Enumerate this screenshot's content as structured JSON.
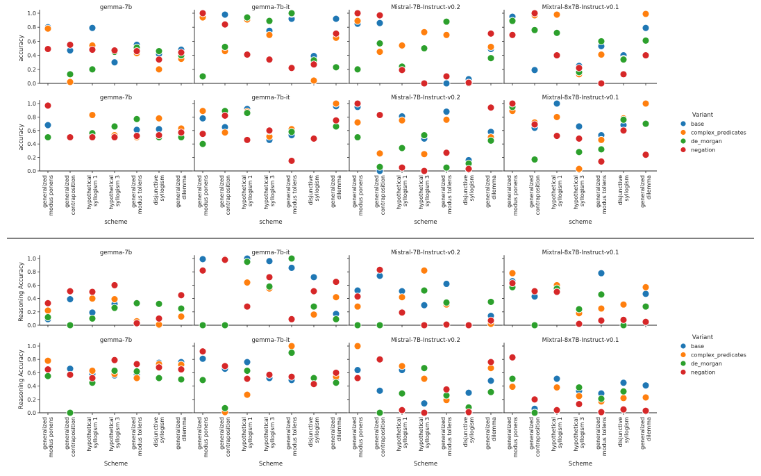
{
  "chart_data": [
    {
      "type": "scatter",
      "ylabel": "accuracy",
      "xlabel": "scheme",
      "ylim": [
        0,
        1.0
      ],
      "yticks": [
        "0.0",
        "0.2",
        "0.4",
        "0.6",
        "0.8",
        "1.0"
      ],
      "grid": false,
      "legend_title": "Variant",
      "legend_position": "right",
      "categories": [
        "generalized\nmodus ponens",
        "generalized\ncontraposition",
        "hypothetical\nsyllogism 1",
        "hypothetical\nsyllogism 3",
        "generalized\nmodus tollens",
        "disjunctive\nsyllogism",
        "generalized\ndilemma"
      ],
      "series_names": [
        "base",
        "complex_predicates",
        "de_morgan",
        "negation"
      ],
      "colors": [
        "#1f77b4",
        "#ff7f0e",
        "#2ca02c",
        "#d62728"
      ],
      "rows": [
        [
          {
            "title": "gemma-7b",
            "values": [
              [
                0.8,
                0.47,
                0.79,
                0.3,
                0.55,
                0.42,
                0.48
              ],
              [
                0.78,
                0.02,
                0.54,
                0.46,
                0.43,
                0.2,
                0.35
              ],
              [
                0.49,
                0.13,
                0.2,
                0.45,
                0.51,
                0.46,
                0.4
              ],
              [
                0.49,
                0.55,
                0.48,
                0.47,
                0.46,
                0.34,
                0.44
              ]
            ]
          },
          {
            "title": "gemma-7b-it",
            "values": [
              [
                1.0,
                0.98,
                0.93,
                0.75,
                0.92,
                0.39,
                0.92
              ],
              [
                0.94,
                0.46,
                0.91,
                0.69,
                0.99,
                0.04,
                0.65
              ],
              [
                0.1,
                0.52,
                0.94,
                0.89,
                1.0,
                0.33,
                0.23
              ],
              [
                1.0,
                0.84,
                0.41,
                0.34,
                0.22,
                0.27,
                0.71
              ]
            ]
          },
          {
            "title": "Mistral-7B-Instruct-v0.2",
            "values": [
              [
                0.85,
                0.86,
                0.53,
                0.0,
                0.0,
                0.06,
                0.49
              ],
              [
                0.89,
                0.45,
                0.54,
                0.73,
                0.69,
                0.01,
                0.52
              ],
              [
                0.2,
                0.57,
                0.24,
                0.5,
                0.88,
                0.0,
                0.36
              ],
              [
                1.0,
                0.97,
                0.19,
                0.0,
                0.1,
                0.01,
                0.71
              ]
            ]
          },
          {
            "title": "Mixtral-8x7B-Instruct-v0.1",
            "values": [
              [
                0.95,
                0.19,
                0.98,
                0.25,
                0.53,
                0.4,
                0.79
              ],
              [
                0.89,
                0.97,
                0.98,
                0.13,
                0.41,
                0.35,
                0.99
              ],
              [
                0.89,
                0.76,
                0.72,
                0.16,
                0.6,
                0.34,
                0.61
              ],
              [
                0.69,
                1.0,
                0.4,
                0.22,
                0.0,
                0.13,
                0.4
              ]
            ]
          }
        ],
        [
          {
            "title": "gemma-7b",
            "values": [
              [
                0.68,
                0.5,
                0.5,
                0.5,
                0.61,
                0.62,
                0.57
              ],
              [
                0.5,
                0.5,
                0.83,
                0.53,
                0.5,
                0.78,
                0.63
              ],
              [
                0.5,
                0.5,
                0.56,
                0.66,
                0.77,
                0.5,
                0.5
              ],
              [
                0.97,
                0.5,
                0.5,
                0.5,
                0.52,
                0.53,
                0.57
              ]
            ]
          },
          {
            "title": "gemma-7b-it",
            "values": [
              [
                0.78,
                0.65,
                0.92,
                0.46,
                0.53,
                0.48,
                0.96
              ],
              [
                0.89,
                0.57,
                0.88,
                0.51,
                0.62,
                0.48,
                1.0
              ],
              [
                0.4,
                0.89,
                0.86,
                0.59,
                0.58,
                0.48,
                0.66
              ],
              [
                0.55,
                0.82,
                0.46,
                0.6,
                0.15,
                0.48,
                0.75
              ]
            ]
          },
          {
            "title": "Mistral-7B-Instruct-v0.2",
            "values": [
              [
                0.95,
                0.0,
                0.81,
                0.48,
                0.88,
                0.16,
                0.58
              ],
              [
                0.72,
                0.26,
                0.75,
                0.25,
                0.76,
                0.03,
                0.5
              ],
              [
                0.5,
                0.06,
                0.34,
                0.53,
                0.05,
                0.11,
                0.45
              ],
              [
                1.0,
                0.83,
                0.05,
                0.0,
                0.27,
                0.03,
                0.94
              ]
            ]
          },
          {
            "title": "Mixtral-8x7B-Instruct-v0.1",
            "values": [
              [
                0.95,
                0.64,
                1.0,
                0.66,
                0.53,
                0.68,
                0.7
              ],
              [
                0.89,
                0.72,
                0.8,
                0.03,
                0.46,
                0.78,
                1.0
              ],
              [
                0.95,
                0.17,
                0.52,
                0.28,
                0.32,
                0.76,
                0.7
              ],
              [
                1.0,
                0.69,
                0.52,
                0.48,
                0.14,
                0.6,
                0.24
              ]
            ]
          }
        ]
      ]
    },
    {
      "type": "scatter",
      "ylabel": "Reasoning Accuracy",
      "xlabel": "Scheme",
      "ylim": [
        0,
        1.0
      ],
      "yticks": [
        "0.0",
        "0.2",
        "0.4",
        "0.6",
        "0.8",
        "1.0"
      ],
      "grid": false,
      "legend_title": "Variant",
      "legend_position": "right",
      "categories": [
        "generalized\nmodus ponens",
        "generalized\ncontraposition",
        "hypothetical\nsyllogism 1",
        "hypothetical\nsyllogism 3",
        "generalized\nmodus tollens",
        "disjunctive\nsyllogism",
        "generalized\ndilemma"
      ],
      "series_names": [
        "base",
        "complex_predicates",
        "de_morgan",
        "negation"
      ],
      "colors": [
        "#1f77b4",
        "#ff7f0e",
        "#2ca02c",
        "#d62728"
      ],
      "rows": [
        [
          {
            "title": "gemma-7b",
            "values": [
              [
                0.09,
                0.39,
                0.19,
                0.32,
                0.03,
                0.0,
                0.13
              ],
              [
                0.22,
                0.0,
                0.4,
                0.39,
                0.06,
                0.01,
                0.13
              ],
              [
                0.12,
                0.0,
                0.1,
                0.26,
                0.33,
                0.32,
                0.25
              ],
              [
                0.33,
                0.51,
                0.5,
                0.6,
                0.03,
                0.1,
                0.45
              ]
            ]
          },
          {
            "title": "gemma-7b-it",
            "values": [
              [
                0.99,
                1.0,
                1.0,
                0.96,
                0.86,
                0.72,
                0.17
              ],
              [
                0.0,
                0.99,
                0.64,
                0.55,
                0.1,
                0.16,
                0.42
              ],
              [
                0.0,
                0.0,
                0.95,
                0.58,
                1.0,
                0.28,
                0.09
              ],
              [
                0.82,
                0.98,
                0.28,
                0.72,
                0.09,
                0.51,
                0.65
              ]
            ]
          },
          {
            "title": "Mistral-7B-Instruct-v0.2",
            "values": [
              [
                0.52,
                0.74,
                0.51,
                0.3,
                0.62,
                0.0,
                0.14
              ],
              [
                0.28,
                0.0,
                0.42,
                0.82,
                0.31,
                0.0,
                0.02
              ],
              [
                0.0,
                0.0,
                0.2,
                0.52,
                0.34,
                0.0,
                0.35
              ],
              [
                0.43,
                0.83,
                0.19,
                0.0,
                0.01,
                0.0,
                0.07
              ]
            ]
          },
          {
            "title": "Mixtral-8x7B-Instruct-v0.1",
            "values": [
              [
                0.66,
                0.43,
                0.55,
                0.2,
                0.78,
                0.0,
                0.47
              ],
              [
                0.78,
                0.0,
                0.6,
                0.18,
                0.25,
                0.31,
                0.57
              ],
              [
                0.57,
                0.0,
                0.55,
                0.24,
                0.46,
                0.0,
                0.28
              ],
              [
                0.63,
                0.51,
                0.5,
                0.02,
                0.07,
                0.08,
                0.05
              ]
            ]
          }
        ],
        [
          {
            "title": "gemma-7b",
            "values": [
              [
                0.55,
                0.66,
                0.58,
                0.56,
                0.58,
                0.75,
                0.76
              ],
              [
                0.78,
                0.0,
                0.63,
                0.58,
                0.52,
                0.73,
                0.72
              ],
              [
                0.55,
                0.0,
                0.45,
                0.63,
                0.62,
                0.52,
                0.5
              ],
              [
                0.65,
                0.57,
                0.52,
                0.79,
                0.73,
                0.68,
                0.65
              ]
            ]
          },
          {
            "title": "gemma-7b-it",
            "values": [
              [
                0.81,
                0.66,
                0.76,
                0.52,
                0.49,
                0.43,
                0.51
              ],
              [
                0.49,
                0.01,
                0.27,
                0.57,
                1.0,
                0.43,
                0.54
              ],
              [
                0.49,
                0.07,
                0.63,
                0.57,
                0.9,
                0.52,
                0.45
              ],
              [
                0.92,
                0.7,
                0.51,
                0.57,
                0.54,
                0.43,
                0.6
              ]
            ]
          },
          {
            "title": "Mistral-7B-Instruct-v0.2",
            "values": [
              [
                0.64,
                0.33,
                0.64,
                0.14,
                0.25,
                0.3,
                0.48
              ],
              [
                1.0,
                0.0,
                0.7,
                0.51,
                0.19,
                0.0,
                0.67
              ],
              [
                0.52,
                0.0,
                0.29,
                0.67,
                0.26,
                0.08,
                0.31
              ],
              [
                0.52,
                0.8,
                0.04,
                0.0,
                0.35,
                0.01,
                0.76
              ]
            ]
          },
          {
            "title": "Mixtral-8x7B-Instruct-v0.1",
            "values": [
              [
                0.39,
                0.06,
                0.51,
                0.33,
                0.29,
                0.45,
                0.41
              ],
              [
                0.39,
                0.0,
                0.38,
                0.25,
                0.17,
                0.22,
                0.23
              ],
              [
                0.51,
                0.0,
                0.04,
                0.38,
                0.21,
                0.32,
                0.03
              ],
              [
                0.83,
                0.2,
                0.04,
                0.13,
                0.01,
                0.05,
                0.03
              ]
            ]
          }
        ]
      ]
    }
  ]
}
